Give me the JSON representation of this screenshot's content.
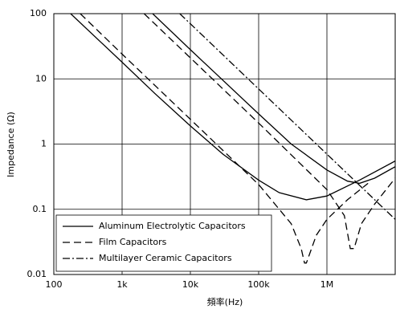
{
  "chart_data": {
    "type": "line",
    "xlabel": "頻率(Hz)",
    "ylabel": "Impedance (Ω)",
    "xlog": true,
    "ylog": true,
    "grid": true,
    "legend": "lower left",
    "xlim": [
      100,
      10000000
    ],
    "ylim": [
      0.01,
      100
    ],
    "xticks": [
      100,
      {
        "value": 1000,
        "label": "1k"
      },
      {
        "value": 10000,
        "label": "10k"
      },
      {
        "value": 100000,
        "label": "100k"
      },
      {
        "value": 1000000,
        "label": "1M"
      }
    ],
    "yticks": [
      0.01,
      0.1,
      1,
      10,
      100
    ],
    "series": [
      {
        "name": "Aluminum Electrolytic Capacitors",
        "color": "#000000",
        "dash": "solid",
        "x": [
          176,
          1000,
          3000,
          10000,
          30000,
          100000,
          200000,
          500000,
          1000000,
          3000000,
          10000000
        ],
        "values": [
          100,
          18,
          6,
          1.9,
          0.7,
          0.28,
          0.18,
          0.14,
          0.16,
          0.28,
          0.55
        ]
      },
      {
        "name": "Aluminum Electrolytic Capacitors",
        "color": "#000000",
        "dash": "solid",
        "x": [
          2800,
          10000,
          100000,
          300000,
          1000000,
          2000000,
          3000000,
          5000000,
          10000000
        ],
        "values": [
          100,
          28,
          2.9,
          1.0,
          0.4,
          0.27,
          0.25,
          0.3,
          0.45
        ]
      },
      {
        "name": "Film Capacitors",
        "color": "#000000",
        "dash": "dashed",
        "x": [
          244,
          1000,
          10000,
          100000,
          300000,
          420000,
          470000,
          500000,
          700000,
          1000000,
          2000000,
          4000000
        ],
        "values": [
          100,
          24,
          2.4,
          0.24,
          0.06,
          0.025,
          0.015,
          0.015,
          0.04,
          0.07,
          0.14,
          0.25
        ]
      },
      {
        "name": "Film Capacitors",
        "color": "#000000",
        "dash": "dashed",
        "x": [
          2100,
          10000,
          100000,
          1000000,
          1800000,
          2200000,
          2500000,
          3200000,
          5000000,
          10000000
        ],
        "values": [
          100,
          21,
          2.1,
          0.2,
          0.08,
          0.025,
          0.025,
          0.06,
          0.12,
          0.3
        ]
      },
      {
        "name": "Multilayer Ceramic Capacitors",
        "color": "#000000",
        "dash": "dashdot",
        "x": [
          7000,
          10000000
        ],
        "values": [
          100,
          0.07
        ]
      }
    ]
  }
}
